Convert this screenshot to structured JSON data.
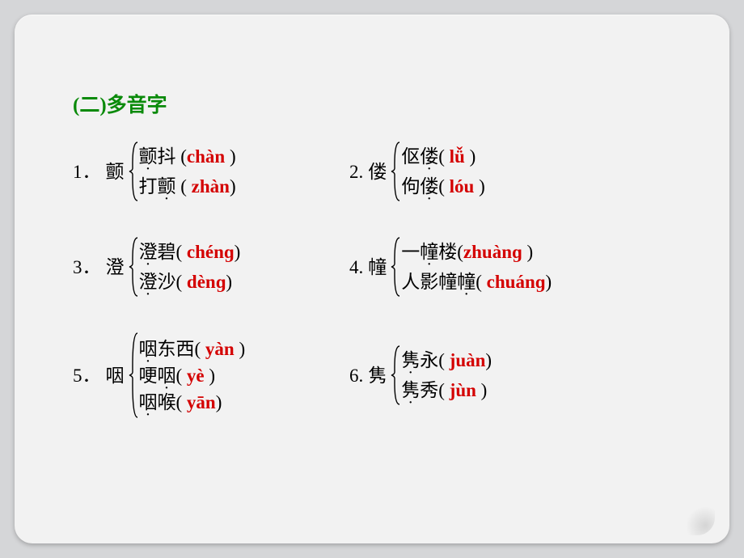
{
  "colors": {
    "page_bg": "#d5d6d8",
    "card_bg": "#f2f2f2",
    "title_color": "#0a8a0a",
    "text_color": "#000000",
    "pron_color": "#d40000"
  },
  "typography": {
    "base_font": "SimSun",
    "pron_font": "Times New Roman",
    "title_size_pt": 19,
    "body_size_pt": 17
  },
  "title": "(二)多音字",
  "items": [
    {
      "num": "1．",
      "head": "颤",
      "lines": [
        {
          "pre": "颤抖  (",
          "pron": "chàn",
          "post": " )",
          "dot_index": 0
        },
        {
          "pre": "打颤  ( ",
          "pron": "zhàn",
          "post": ")",
          "dot_index": 1
        }
      ]
    },
    {
      "num": "2.",
      "head": "偻",
      "lines": [
        {
          "pre": "伛偻( ",
          "pron": "lǚ",
          "post": "  )",
          "dot_index": 1
        },
        {
          "pre": "佝偻(  ",
          "pron": "lóu",
          "post": " )",
          "dot_index": 1
        }
      ]
    },
    {
      "num": "3．",
      "head": "澄",
      "lines": [
        {
          "pre": "澄碧( ",
          "pron": "chénɡ",
          "post": ")",
          "dot_index": 0
        },
        {
          "pre": "澄沙( ",
          "pron": "dènɡ",
          "post": ")",
          "dot_index": 0
        }
      ]
    },
    {
      "num": "4.",
      "head": "幢",
      "lines": [
        {
          "pre": "一幢楼(",
          "pron": "zhuànɡ",
          "post": "   )",
          "dot_index": 1
        },
        {
          "pre": "人影幢幢( ",
          "pron": "chuánɡ",
          "post": ")",
          "dot_index": 3
        }
      ]
    },
    {
      "num": "5．",
      "head": "咽",
      "lines": [
        {
          "pre": "咽东西( ",
          "pron": "yàn",
          "post": " )",
          "dot_index": 0
        },
        {
          "pre": "哽咽(   ",
          "pron": "yè",
          "post": "  )",
          "dot_index": 1
        },
        {
          "pre": "咽喉(  ",
          "pron": "yān",
          "post": ")",
          "dot_index": 0
        }
      ]
    },
    {
      "num": "6.",
      "head": "隽",
      "lines": [
        {
          "pre": "隽永(  ",
          "pron": "juàn",
          "post": ")",
          "dot_index": 0
        },
        {
          "pre": "隽秀(   ",
          "pron": "jùn",
          "post": " )",
          "dot_index": 0
        }
      ]
    }
  ]
}
